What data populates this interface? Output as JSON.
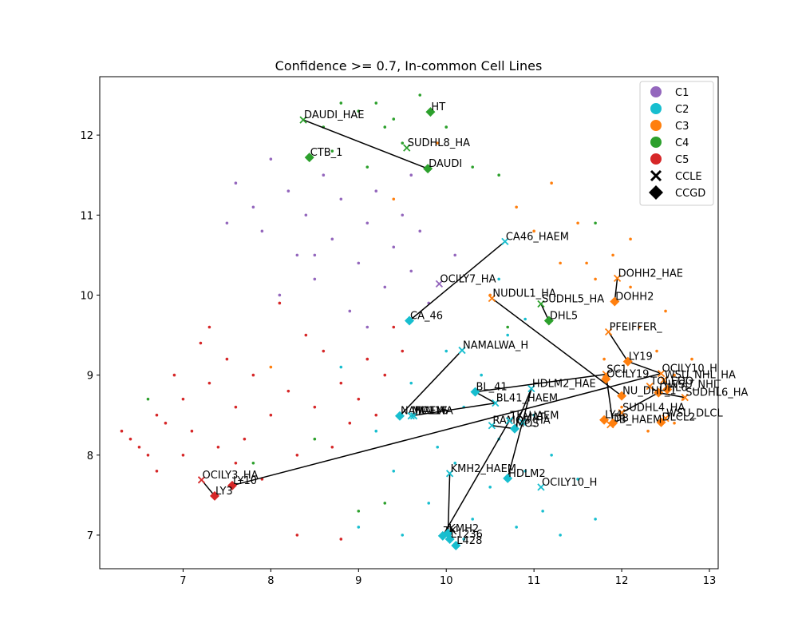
{
  "chart_data": {
    "type": "scatter",
    "title": "Confidence >= 0.7, In-common Cell Lines",
    "xlabel": "",
    "ylabel": "",
    "xlim": [
      6.05,
      13.1
    ],
    "ylim": [
      6.58,
      12.73
    ],
    "xticks": [
      7,
      8,
      9,
      10,
      11,
      12,
      13
    ],
    "yticks": [
      7,
      8,
      9,
      10,
      11,
      12
    ],
    "grid": false,
    "legend_position": "top-right",
    "clusters": [
      {
        "name": "C1",
        "color": "#9467bd"
      },
      {
        "name": "C2",
        "color": "#17becf"
      },
      {
        "name": "C3",
        "color": "#ff7f0e"
      },
      {
        "name": "C4",
        "color": "#2ca02c"
      },
      {
        "name": "C5",
        "color": "#d62728"
      }
    ],
    "marker_legend": [
      {
        "name": "CCLE",
        "marker": "x"
      },
      {
        "name": "CCGD",
        "marker": "diamond"
      }
    ],
    "background_points": [
      {
        "c": "C1",
        "x": 7.6,
        "y": 11.4
      },
      {
        "c": "C1",
        "x": 7.8,
        "y": 11.1
      },
      {
        "c": "C1",
        "x": 7.9,
        "y": 10.8
      },
      {
        "c": "C1",
        "x": 8.0,
        "y": 11.7
      },
      {
        "c": "C1",
        "x": 8.2,
        "y": 11.3
      },
      {
        "c": "C1",
        "x": 8.3,
        "y": 10.5
      },
      {
        "c": "C1",
        "x": 8.4,
        "y": 11.0
      },
      {
        "c": "C1",
        "x": 8.5,
        "y": 10.2
      },
      {
        "c": "C1",
        "x": 8.6,
        "y": 11.5
      },
      {
        "c": "C1",
        "x": 8.7,
        "y": 10.7
      },
      {
        "c": "C1",
        "x": 8.8,
        "y": 11.2
      },
      {
        "c": "C1",
        "x": 8.9,
        "y": 9.8
      },
      {
        "c": "C1",
        "x": 9.0,
        "y": 10.4
      },
      {
        "c": "C1",
        "x": 9.1,
        "y": 10.9
      },
      {
        "c": "C1",
        "x": 9.2,
        "y": 11.3
      },
      {
        "c": "C1",
        "x": 9.3,
        "y": 10.1
      },
      {
        "c": "C1",
        "x": 9.4,
        "y": 10.6
      },
      {
        "c": "C1",
        "x": 9.5,
        "y": 11.0
      },
      {
        "c": "C1",
        "x": 9.6,
        "y": 10.3
      },
      {
        "c": "C1",
        "x": 9.7,
        "y": 10.8
      },
      {
        "c": "C1",
        "x": 9.8,
        "y": 9.9
      },
      {
        "c": "C1",
        "x": 7.5,
        "y": 10.9
      },
      {
        "c": "C1",
        "x": 8.1,
        "y": 10.0
      },
      {
        "c": "C1",
        "x": 9.1,
        "y": 9.6
      },
      {
        "c": "C1",
        "x": 8.5,
        "y": 10.5
      },
      {
        "c": "C1",
        "x": 9.6,
        "y": 11.5
      },
      {
        "c": "C1",
        "x": 10.1,
        "y": 10.5
      },
      {
        "c": "C2",
        "x": 8.8,
        "y": 9.1
      },
      {
        "c": "C2",
        "x": 9.2,
        "y": 8.3
      },
      {
        "c": "C2",
        "x": 9.4,
        "y": 7.8
      },
      {
        "c": "C2",
        "x": 9.6,
        "y": 8.9
      },
      {
        "c": "C2",
        "x": 9.8,
        "y": 7.4
      },
      {
        "c": "C2",
        "x": 9.9,
        "y": 8.1
      },
      {
        "c": "C2",
        "x": 10.0,
        "y": 9.3
      },
      {
        "c": "C2",
        "x": 10.1,
        "y": 7.9
      },
      {
        "c": "C2",
        "x": 10.2,
        "y": 8.6
      },
      {
        "c": "C2",
        "x": 10.3,
        "y": 7.2
      },
      {
        "c": "C2",
        "x": 10.4,
        "y": 9.0
      },
      {
        "c": "C2",
        "x": 10.5,
        "y": 7.6
      },
      {
        "c": "C2",
        "x": 10.6,
        "y": 8.2
      },
      {
        "c": "C2",
        "x": 10.7,
        "y": 9.5
      },
      {
        "c": "C2",
        "x": 10.8,
        "y": 7.1
      },
      {
        "c": "C2",
        "x": 10.9,
        "y": 7.8
      },
      {
        "c": "C2",
        "x": 11.0,
        "y": 8.5
      },
      {
        "c": "C2",
        "x": 11.1,
        "y": 7.3
      },
      {
        "c": "C2",
        "x": 11.2,
        "y": 8.0
      },
      {
        "c": "C2",
        "x": 11.3,
        "y": 7.0
      },
      {
        "c": "C2",
        "x": 11.5,
        "y": 7.7
      },
      {
        "c": "C2",
        "x": 11.7,
        "y": 7.2
      },
      {
        "c": "C2",
        "x": 9.0,
        "y": 7.1
      },
      {
        "c": "C2",
        "x": 9.5,
        "y": 7.0
      },
      {
        "c": "C2",
        "x": 10.6,
        "y": 10.2
      },
      {
        "c": "C2",
        "x": 10.9,
        "y": 9.7
      },
      {
        "c": "C2",
        "x": 10.2,
        "y": 6.95
      },
      {
        "c": "C3",
        "x": 10.8,
        "y": 11.1
      },
      {
        "c": "C3",
        "x": 11.0,
        "y": 10.8
      },
      {
        "c": "C3",
        "x": 11.2,
        "y": 11.4
      },
      {
        "c": "C3",
        "x": 11.3,
        "y": 10.4
      },
      {
        "c": "C3",
        "x": 11.5,
        "y": 10.9
      },
      {
        "c": "C3",
        "x": 11.7,
        "y": 10.2
      },
      {
        "c": "C3",
        "x": 11.9,
        "y": 10.5
      },
      {
        "c": "C3",
        "x": 12.1,
        "y": 10.1
      },
      {
        "c": "C3",
        "x": 12.2,
        "y": 9.6
      },
      {
        "c": "C3",
        "x": 12.4,
        "y": 9.3
      },
      {
        "c": "C3",
        "x": 12.5,
        "y": 9.8
      },
      {
        "c": "C3",
        "x": 12.6,
        "y": 9.0
      },
      {
        "c": "C3",
        "x": 12.7,
        "y": 8.7
      },
      {
        "c": "C3",
        "x": 12.3,
        "y": 8.3
      },
      {
        "c": "C3",
        "x": 12.0,
        "y": 8.6
      },
      {
        "c": "C3",
        "x": 11.8,
        "y": 9.2
      },
      {
        "c": "C3",
        "x": 12.8,
        "y": 9.2
      },
      {
        "c": "C3",
        "x": 12.1,
        "y": 10.7
      },
      {
        "c": "C3",
        "x": 9.4,
        "y": 11.2
      },
      {
        "c": "C3",
        "x": 9.9,
        "y": 11.9
      },
      {
        "c": "C3",
        "x": 8.0,
        "y": 9.1
      },
      {
        "c": "C3",
        "x": 11.6,
        "y": 10.4
      },
      {
        "c": "C3",
        "x": 10.5,
        "y": 10.0
      },
      {
        "c": "C3",
        "x": 12.6,
        "y": 8.4
      },
      {
        "c": "C4",
        "x": 8.8,
        "y": 12.4
      },
      {
        "c": "C4",
        "x": 9.0,
        "y": 12.3
      },
      {
        "c": "C4",
        "x": 9.2,
        "y": 12.4
      },
      {
        "c": "C4",
        "x": 9.3,
        "y": 12.1
      },
      {
        "c": "C4",
        "x": 9.4,
        "y": 12.2
      },
      {
        "c": "C4",
        "x": 9.5,
        "y": 11.9
      },
      {
        "c": "C4",
        "x": 8.7,
        "y": 11.8
      },
      {
        "c": "C4",
        "x": 8.6,
        "y": 12.1
      },
      {
        "c": "C4",
        "x": 9.1,
        "y": 11.6
      },
      {
        "c": "C4",
        "x": 9.7,
        "y": 12.5
      },
      {
        "c": "C4",
        "x": 10.0,
        "y": 12.1
      },
      {
        "c": "C4",
        "x": 10.6,
        "y": 11.5
      },
      {
        "c": "C4",
        "x": 10.7,
        "y": 9.6
      },
      {
        "c": "C4",
        "x": 9.3,
        "y": 7.4
      },
      {
        "c": "C4",
        "x": 9.0,
        "y": 7.3
      },
      {
        "c": "C4",
        "x": 6.6,
        "y": 8.7
      },
      {
        "c": "C4",
        "x": 7.8,
        "y": 7.9
      },
      {
        "c": "C4",
        "x": 8.5,
        "y": 8.2
      },
      {
        "c": "C4",
        "x": 11.7,
        "y": 10.9
      },
      {
        "c": "C4",
        "x": 10.3,
        "y": 11.6
      },
      {
        "c": "C5",
        "x": 6.3,
        "y": 8.3
      },
      {
        "c": "C5",
        "x": 6.4,
        "y": 8.2
      },
      {
        "c": "C5",
        "x": 6.5,
        "y": 8.1
      },
      {
        "c": "C5",
        "x": 6.6,
        "y": 8.0
      },
      {
        "c": "C5",
        "x": 6.7,
        "y": 8.5
      },
      {
        "c": "C5",
        "x": 6.8,
        "y": 8.4
      },
      {
        "c": "C5",
        "x": 6.9,
        "y": 9.0
      },
      {
        "c": "C5",
        "x": 7.0,
        "y": 8.7
      },
      {
        "c": "C5",
        "x": 7.1,
        "y": 8.3
      },
      {
        "c": "C5",
        "x": 7.2,
        "y": 9.4
      },
      {
        "c": "C5",
        "x": 7.3,
        "y": 8.9
      },
      {
        "c": "C5",
        "x": 7.4,
        "y": 8.1
      },
      {
        "c": "C5",
        "x": 7.5,
        "y": 9.2
      },
      {
        "c": "C5",
        "x": 7.6,
        "y": 8.6
      },
      {
        "c": "C5",
        "x": 7.7,
        "y": 8.2
      },
      {
        "c": "C5",
        "x": 7.8,
        "y": 9.0
      },
      {
        "c": "C5",
        "x": 7.9,
        "y": 7.7
      },
      {
        "c": "C5",
        "x": 8.0,
        "y": 8.5
      },
      {
        "c": "C5",
        "x": 8.1,
        "y": 9.9
      },
      {
        "c": "C5",
        "x": 8.2,
        "y": 8.8
      },
      {
        "c": "C5",
        "x": 8.3,
        "y": 8.0
      },
      {
        "c": "C5",
        "x": 8.4,
        "y": 9.5
      },
      {
        "c": "C5",
        "x": 8.5,
        "y": 8.6
      },
      {
        "c": "C5",
        "x": 8.6,
        "y": 9.3
      },
      {
        "c": "C5",
        "x": 8.7,
        "y": 8.1
      },
      {
        "c": "C5",
        "x": 8.8,
        "y": 8.9
      },
      {
        "c": "C5",
        "x": 8.9,
        "y": 8.4
      },
      {
        "c": "C5",
        "x": 9.0,
        "y": 8.7
      },
      {
        "c": "C5",
        "x": 9.1,
        "y": 9.2
      },
      {
        "c": "C5",
        "x": 9.2,
        "y": 8.5
      },
      {
        "c": "C5",
        "x": 9.3,
        "y": 9.0
      },
      {
        "c": "C5",
        "x": 8.3,
        "y": 7.0
      },
      {
        "c": "C5",
        "x": 8.8,
        "y": 6.95
      },
      {
        "c": "C5",
        "x": 7.3,
        "y": 9.6
      },
      {
        "c": "C5",
        "x": 7.0,
        "y": 8.0
      },
      {
        "c": "C5",
        "x": 6.7,
        "y": 7.8
      },
      {
        "c": "C5",
        "x": 7.6,
        "y": 7.9
      },
      {
        "c": "C5",
        "x": 9.4,
        "y": 9.6
      },
      {
        "c": "C5",
        "x": 9.5,
        "y": 9.3
      }
    ],
    "labeled_points": [
      {
        "label": "HT",
        "cluster": "C4",
        "marker": "diamond",
        "x": 9.82,
        "y": 12.29
      },
      {
        "label": "DAUDI_HAE",
        "cluster": "C4",
        "marker": "x",
        "x": 8.37,
        "y": 12.19
      },
      {
        "label": "SUDHL8_HA",
        "cluster": "C4",
        "marker": "x",
        "x": 9.55,
        "y": 11.84
      },
      {
        "label": "CTB_1",
        "cluster": "C4",
        "marker": "diamond",
        "x": 8.44,
        "y": 11.72
      },
      {
        "label": "DAUDI",
        "cluster": "C4",
        "marker": "diamond",
        "x": 9.79,
        "y": 11.58
      },
      {
        "label": "CA46_HAEM",
        "cluster": "C2",
        "marker": "x",
        "x": 10.67,
        "y": 10.67
      },
      {
        "label": "DOHH2_HAE",
        "cluster": "C3",
        "marker": "x",
        "x": 11.95,
        "y": 10.21
      },
      {
        "label": "OCILY7_HA",
        "cluster": "C1",
        "marker": "x",
        "x": 9.92,
        "y": 10.14
      },
      {
        "label": "NUDUL1_HA",
        "cluster": "C3",
        "marker": "x",
        "x": 10.52,
        "y": 9.96
      },
      {
        "label": "DOHH2",
        "cluster": "C3",
        "marker": "diamond",
        "x": 11.92,
        "y": 9.92
      },
      {
        "label": "SUDHL5_HA",
        "cluster": "C4",
        "marker": "x",
        "x": 11.08,
        "y": 9.89
      },
      {
        "label": "DHL5",
        "cluster": "C4",
        "marker": "diamond",
        "x": 11.17,
        "y": 9.68
      },
      {
        "label": "CA_46",
        "cluster": "C2",
        "marker": "diamond",
        "x": 9.58,
        "y": 9.68
      },
      {
        "label": "PFEIFFER_",
        "cluster": "C3",
        "marker": "x",
        "x": 11.85,
        "y": 9.54
      },
      {
        "label": "NAMALWA_H",
        "cluster": "C2",
        "marker": "x",
        "x": 10.18,
        "y": 9.31
      },
      {
        "label": "LY19",
        "cluster": "C3",
        "marker": "diamond",
        "x": 12.07,
        "y": 9.17
      },
      {
        "label": "OCILY10_H",
        "cluster": "C3",
        "marker": "x",
        "x": 12.45,
        "y": 9.02
      },
      {
        "label": "SC1",
        "cluster": "C3",
        "marker": "x",
        "x": 11.82,
        "y": 9.01
      },
      {
        "label": "OCILY19",
        "cluster": "C3",
        "marker": "diamond",
        "x": 11.82,
        "y": 8.95
      },
      {
        "label": "WSU_NHL_HA",
        "cluster": "C3",
        "marker": "x",
        "x": 12.48,
        "y": 8.94
      },
      {
        "label": "TOLEDO",
        "cluster": "C3",
        "marker": "x",
        "x": 12.32,
        "y": 8.86
      },
      {
        "label": "HDLM2_HAE",
        "cluster": "C2",
        "marker": "x",
        "x": 10.97,
        "y": 8.83
      },
      {
        "label": "WSU_NHL",
        "cluster": "C3",
        "marker": "diamond",
        "x": 12.52,
        "y": 8.82
      },
      {
        "label": "DHL6",
        "cluster": "C3",
        "marker": "diamond",
        "x": 12.42,
        "y": 8.78
      },
      {
        "label": "BL_41",
        "cluster": "C2",
        "marker": "diamond",
        "x": 10.33,
        "y": 8.79
      },
      {
        "label": "NU_DHL_1",
        "cluster": "C3",
        "marker": "diamond",
        "x": 12.0,
        "y": 8.74
      },
      {
        "label": "SUDHL6_HA",
        "cluster": "C3",
        "marker": "x",
        "x": 12.72,
        "y": 8.72
      },
      {
        "label": "BL41_HAEM",
        "cluster": "C2",
        "marker": "x",
        "x": 10.56,
        "y": 8.65
      },
      {
        "label": "SUDHL4_HA",
        "cluster": "C3",
        "marker": "x",
        "x": 12.0,
        "y": 8.53
      },
      {
        "label": "NAMALWA",
        "cluster": "C2",
        "marker": "diamond",
        "x": 9.47,
        "y": 8.49
      },
      {
        "label": "MC116",
        "cluster": "C2",
        "marker": "x",
        "x": 9.6,
        "y": 8.49
      },
      {
        "label": "HAEM",
        "cluster": "C2",
        "marker": "x",
        "x": 9.63,
        "y": 8.49
      },
      {
        "label": "WSU_DLCL",
        "cluster": "C3",
        "marker": "x",
        "x": 12.5,
        "y": 8.46
      },
      {
        "label": "RAMOS_HA",
        "cluster": "C2",
        "marker": "x",
        "x": 10.52,
        "y": 8.37
      },
      {
        "label": "TK_HAEM",
        "cluster": "C2",
        "marker": "x",
        "x": 10.72,
        "y": 8.43
      },
      {
        "label": "MAT",
        "cluster": "C2",
        "marker": "x",
        "x": 10.87,
        "y": 8.41
      },
      {
        "label": "DLCL2",
        "cluster": "C3",
        "marker": "diamond",
        "x": 12.45,
        "y": 8.41
      },
      {
        "label": "LY4",
        "cluster": "C3",
        "marker": "diamond",
        "x": 11.8,
        "y": 8.44
      },
      {
        "label": "DB_HAEM",
        "cluster": "C3",
        "marker": "x",
        "x": 11.87,
        "y": 8.38
      },
      {
        "label": "DB",
        "cluster": "C3",
        "marker": "diamond",
        "x": 11.9,
        "y": 8.4
      },
      {
        "label": "MOS",
        "cluster": "C2",
        "marker": "diamond",
        "x": 10.78,
        "y": 8.33
      },
      {
        "label": "KMH2_HAEM",
        "cluster": "C2",
        "marker": "x",
        "x": 10.04,
        "y": 7.77
      },
      {
        "label": "HDLM2",
        "cluster": "C2",
        "marker": "diamond",
        "x": 10.7,
        "y": 7.71
      },
      {
        "label": "OCILY10_H",
        "cluster": "C2",
        "marker": "x",
        "x": 11.08,
        "y": 7.6
      },
      {
        "label": "OCILY3_HA",
        "cluster": "C5",
        "marker": "x",
        "x": 7.21,
        "y": 7.69
      },
      {
        "label": "LY10",
        "cluster": "C5",
        "marker": "diamond",
        "x": 7.56,
        "y": 7.62
      },
      {
        "label": "LY3",
        "cluster": "C5",
        "marker": "diamond",
        "x": 7.36,
        "y": 7.49
      },
      {
        "label": "TK",
        "cluster": "C2",
        "marker": "diamond",
        "x": 9.96,
        "y": 6.99
      },
      {
        "label": "KMH2",
        "cluster": "C2",
        "marker": "diamond",
        "x": 10.02,
        "y": 7.02
      },
      {
        "label": "L1236",
        "cluster": "C2",
        "marker": "diamond",
        "x": 10.04,
        "y": 6.95
      },
      {
        "label": "L428",
        "cluster": "C2",
        "marker": "diamond",
        "x": 10.11,
        "y": 6.87
      }
    ],
    "connections": [
      {
        "from": "DAUDI_HAE",
        "to": "DAUDI"
      },
      {
        "from": "CA46_HAEM",
        "to": "CA_46"
      },
      {
        "from": "DOHH2_HAE",
        "to": "DOHH2"
      },
      {
        "from": "SUDHL5_HA",
        "to": "DHL5"
      },
      {
        "from": "NUDUL1_HA",
        "to": "NU_DHL_1"
      },
      {
        "from": "NAMALWA_H",
        "to": "NAMALWA"
      },
      {
        "from": "SC1",
        "to": "BL_41"
      },
      {
        "from": "SC1",
        "to": "DB"
      },
      {
        "from": "PFEIFFER_",
        "to": "LY19"
      },
      {
        "from": "OCILY10_H",
        "to": "LY19"
      },
      {
        "from": "WSU_NHL_HA",
        "to": "WSU_NHL"
      },
      {
        "from": "SUDHL6_HA",
        "to": "DHL6"
      },
      {
        "from": "TOLEDO",
        "to": "DHL6"
      },
      {
        "from": "SUDHL4_HA",
        "to": "DHL6"
      },
      {
        "from": "WSU_DLCL",
        "to": "DLCL2"
      },
      {
        "from": "BL_41",
        "to": "BL41_HAEM"
      },
      {
        "from": "HDLM2_HAE",
        "to": "HDLM2"
      },
      {
        "from": "HDLM2_HAE",
        "to": "MOS"
      },
      {
        "from": "MC116",
        "to": "BL41_HAEM"
      },
      {
        "from": "RAMOS_HA",
        "to": "MOS"
      },
      {
        "from": "TK_HAEM",
        "to": "TK"
      },
      {
        "from": "KMH2_HAEM",
        "to": "KMH2"
      },
      {
        "from": "OCILY3_HA",
        "to": "LY3"
      },
      {
        "from": "LY10",
        "to": "OCILY10_H"
      }
    ]
  }
}
